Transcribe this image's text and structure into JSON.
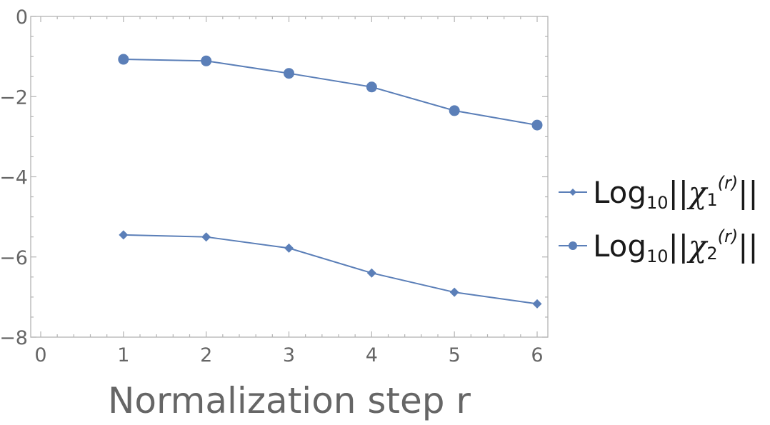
{
  "chart_data": {
    "type": "line",
    "title": "",
    "xlabel": "Normalization step r",
    "ylabel": "",
    "xlim": [
      0,
      6
    ],
    "ylim": [
      -8,
      0
    ],
    "x_ticks": [
      0,
      1,
      2,
      3,
      4,
      5,
      6
    ],
    "y_ticks": [
      0,
      -2,
      -4,
      -6,
      -8
    ],
    "x_tick_labels": [
      "0",
      "1",
      "2",
      "3",
      "4",
      "5",
      "6"
    ],
    "y_tick_labels": [
      "0",
      "−2",
      "−4",
      "−6",
      "−8"
    ],
    "grid": false,
    "legend_position": "right",
    "x": [
      1,
      2,
      3,
      4,
      5,
      6
    ],
    "series": [
      {
        "legend": {
          "base": "Log",
          "sub": "10",
          "bars": "||",
          "chi": "χ",
          "chi_sub": "1",
          "sup": "(r)",
          "end": "||"
        },
        "marker": "diamond",
        "color": "#5b7fb8",
        "values": [
          -5.45,
          -5.5,
          -5.78,
          -6.4,
          -6.88,
          -7.17
        ]
      },
      {
        "legend": {
          "base": "Log",
          "sub": "10",
          "bars": "||",
          "chi": "χ",
          "chi_sub": "2",
          "sup": "(r)",
          "end": "||"
        },
        "marker": "circle",
        "color": "#5b7fb8",
        "values": [
          -1.07,
          -1.11,
          -1.42,
          -1.76,
          -2.35,
          -2.71
        ]
      }
    ]
  }
}
